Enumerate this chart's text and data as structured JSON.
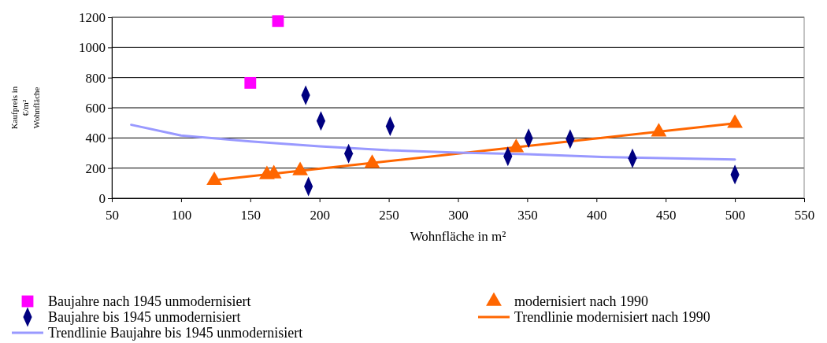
{
  "chart_data": {
    "type": "scatter",
    "xlabel": "Wohnfläche in m²",
    "ylabel": "Kaufpreis in €/m² Wohnfläche",
    "xlim": [
      50,
      550
    ],
    "xticks": [
      50,
      100,
      150,
      200,
      250,
      300,
      350,
      400,
      450,
      500,
      550
    ],
    "ylim": [
      0,
      1200
    ],
    "yticks": [
      0,
      200,
      400,
      600,
      800,
      1000,
      1200
    ],
    "grid": "y",
    "legend": "bottom",
    "series": [
      {
        "name": "Baujahre nach 1945 unmodernisiert",
        "color": "#ff00ff",
        "marker": "square",
        "x": [
          150,
          170
        ],
        "values": [
          765,
          1175
        ]
      },
      {
        "name": "modernisiert nach 1990",
        "color": "#ff6600",
        "marker": "triangle",
        "x": [
          124,
          162,
          167,
          186,
          238,
          342,
          445,
          500
        ],
        "values": [
          118,
          157,
          162,
          183,
          231,
          335,
          440,
          497
        ]
      },
      {
        "name": "Baujahre bis 1945 unmodernisiert",
        "color": "#000080",
        "marker": "diamond",
        "x": [
          190,
          201,
          192,
          221,
          251,
          336,
          351,
          381,
          426,
          500
        ],
        "values": [
          683,
          513,
          78,
          296,
          478,
          278,
          398,
          393,
          265,
          157
        ]
      },
      {
        "name": "Trendlinie modernisiert nach 1990",
        "type": "line",
        "color": "#ff6600",
        "marker": "none",
        "x": [
          124,
          500
        ],
        "values": [
          120,
          497
        ]
      },
      {
        "name": "Trendlinie Baujahre bis 1945 unmodernisiert",
        "type": "line",
        "color": "#9999ff",
        "marker": "none",
        "x": [
          64,
          100,
          150,
          200,
          250,
          300,
          350,
          400,
          500
        ],
        "values": [
          487,
          416,
          377,
          344,
          318,
          303,
          292,
          275,
          257
        ]
      }
    ]
  }
}
